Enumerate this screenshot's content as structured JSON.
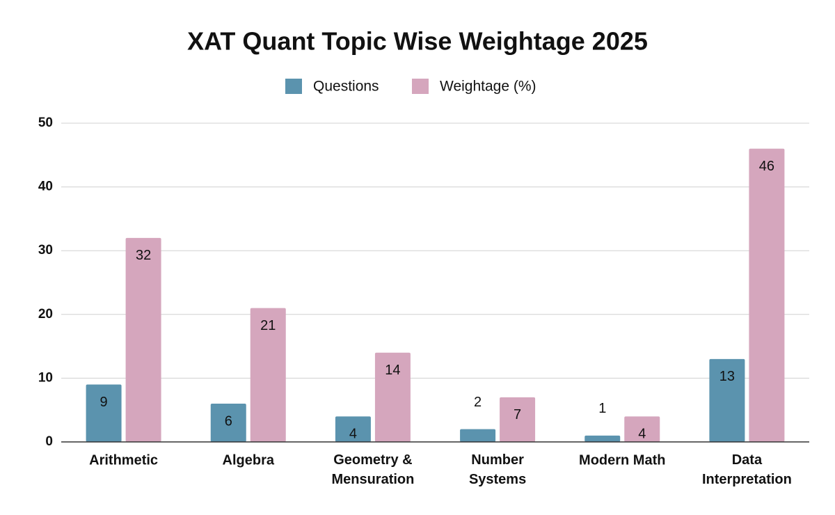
{
  "chart_data": {
    "type": "bar",
    "title": "XAT Quant Topic Wise Weightage 2025",
    "categories": [
      "Arithmetic",
      "Algebra",
      "Geometry &\nMensuration",
      "Number\nSystems",
      "Modern Math",
      "Data\nInterpretation"
    ],
    "series": [
      {
        "name": "Questions",
        "color": "#5b93ae",
        "values": [
          9,
          6,
          4,
          2,
          1,
          13
        ]
      },
      {
        "name": "Weightage (%)",
        "color": "#d5a6bd",
        "values": [
          32,
          21,
          14,
          7,
          4,
          46
        ]
      }
    ],
    "ylim": [
      0,
      50
    ],
    "yticks": [
      0,
      10,
      20,
      30,
      40,
      50
    ],
    "grid": true,
    "legend": "top"
  }
}
